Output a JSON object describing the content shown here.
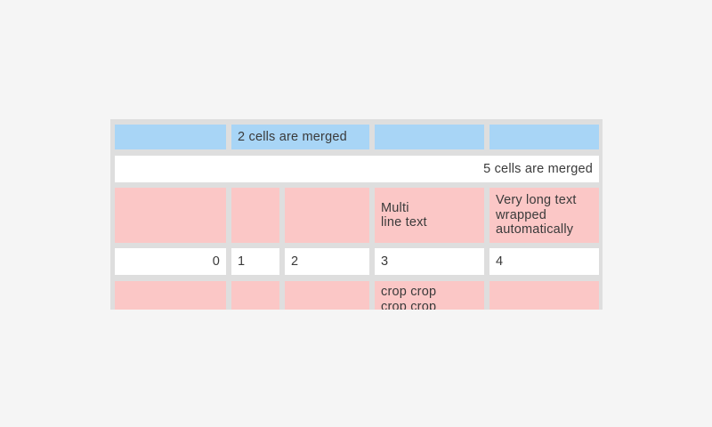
{
  "page": {
    "background": "#f5f5f5"
  },
  "colors": {
    "blue_cell": "#a8d5f6",
    "pink_cell": "#fbc7c6",
    "white_cell": "#ffffff",
    "grid_frame": "#dedede",
    "text": "#3a3a3a"
  },
  "grid": {
    "rows": [
      {
        "cells": [
          {
            "text": ""
          },
          {
            "text": "2 cells are merged"
          },
          {
            "text": ""
          },
          {
            "text": ""
          }
        ]
      },
      {
        "cells": [
          {
            "text": "5 cells are merged"
          }
        ]
      },
      {
        "cells": [
          {
            "text": ""
          },
          {
            "text": ""
          },
          {
            "text": ""
          },
          {
            "text": "Multi\nline text"
          },
          {
            "text": "Very long text wrapped automatically"
          }
        ]
      },
      {
        "cells": [
          {
            "text": "0"
          },
          {
            "text": "1"
          },
          {
            "text": "2"
          },
          {
            "text": "3"
          },
          {
            "text": "4"
          }
        ]
      },
      {
        "cells": [
          {
            "text": ""
          },
          {
            "text": ""
          },
          {
            "text": ""
          },
          {
            "text": "crop crop crop crop"
          },
          {
            "text": ""
          }
        ]
      }
    ]
  }
}
